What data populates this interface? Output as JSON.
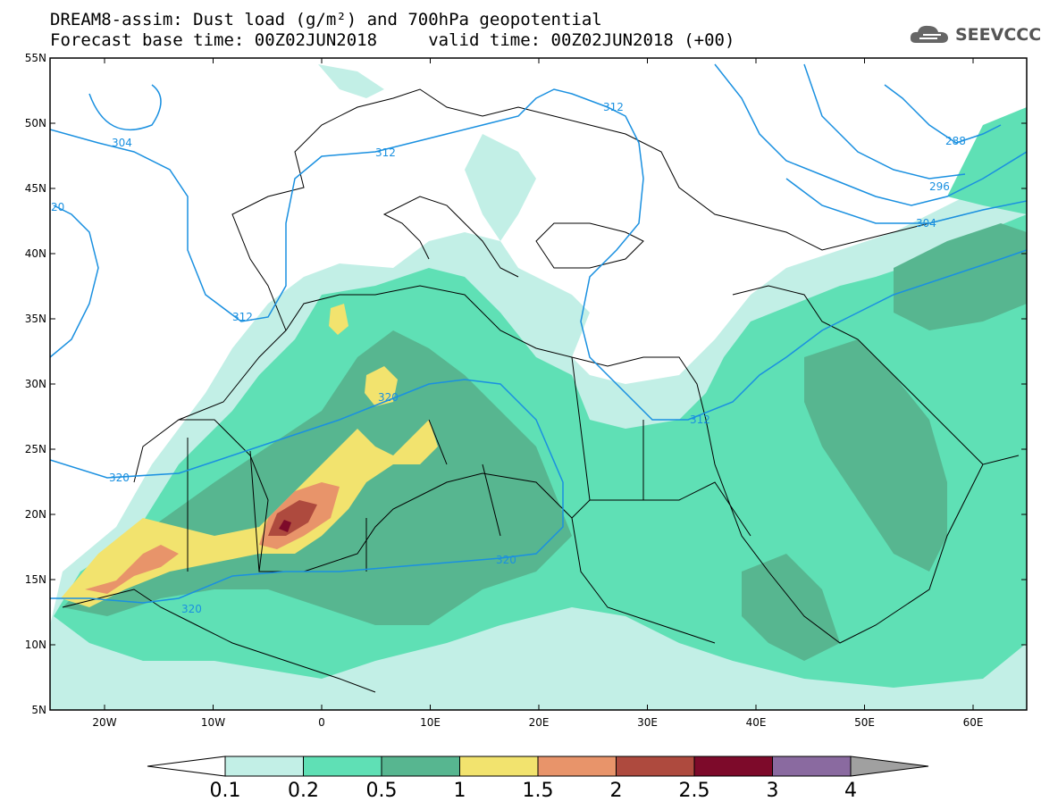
{
  "header": {
    "line1": "DREAM8-assim: Dust load (g/m²) and 700hPa geopotential",
    "line2": "Forecast base time: 00Z02JUN2018     valid time: 00Z02JUN2018 (+00)",
    "logo_text": "SEEVCCC"
  },
  "axes": {
    "lat_labels": [
      "55N",
      "50N",
      "45N",
      "40N",
      "35N",
      "30N",
      "25N",
      "20N",
      "15N",
      "10N",
      "5N"
    ],
    "lon_labels": [
      "20W",
      "10W",
      "0",
      "10E",
      "20E",
      "30E",
      "40E",
      "50E",
      "60E"
    ]
  },
  "contour_labels": [
    {
      "text": "304",
      "id": "c304a"
    },
    {
      "text": "312",
      "id": "c312a"
    },
    {
      "text": "312",
      "id": "c312b"
    },
    {
      "text": "312",
      "id": "c312c"
    },
    {
      "text": "312",
      "id": "c312d"
    },
    {
      "text": "320",
      "id": "c320a"
    },
    {
      "text": "320",
      "id": "c320b"
    },
    {
      "text": "320",
      "id": "c320c"
    },
    {
      "text": "320",
      "id": "c320d"
    },
    {
      "text": "288",
      "id": "c288"
    },
    {
      "text": "296",
      "id": "c296"
    },
    {
      "text": "304",
      "id": "c304b"
    },
    {
      "text": "20",
      "id": "c20"
    }
  ],
  "colorbar": {
    "labels": [
      "0.1",
      "0.2",
      "0.5",
      "1",
      "1.5",
      "2",
      "2.5",
      "3",
      "4"
    ],
    "colors": [
      "#ffffff",
      "#c2efe6",
      "#5fe0b5",
      "#57b690",
      "#f2e36e",
      "#e8946a",
      "#ae4a3e",
      "#7d0a2a",
      "#8a6aa0",
      "#a0a0a0"
    ]
  },
  "colors": {
    "land_bg": "#ffffff",
    "contour_line": "#1a90e0",
    "dust_01": "#c2efe6",
    "dust_02": "#5fe0b5",
    "dust_05": "#57b690",
    "dust_1": "#f2e36e",
    "dust_15": "#e8946a",
    "dust_2": "#ae4a3e",
    "dust_25": "#7d0a2a"
  }
}
